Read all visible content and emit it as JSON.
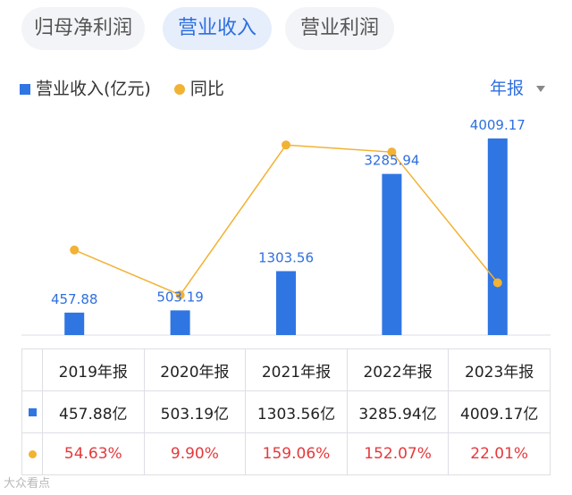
{
  "tabs": [
    {
      "label": "归母净利润",
      "active": false
    },
    {
      "label": "营业收入",
      "active": true
    },
    {
      "label": "营业利润",
      "active": false
    }
  ],
  "legend": {
    "bar_label": "营业收入(亿元)",
    "line_label": "同比"
  },
  "period_selector": {
    "value": "年报"
  },
  "colors": {
    "bar": "#2f76e3",
    "line": "#f2b233",
    "accent": "#2e6fe0",
    "negative_text": "#e4393c"
  },
  "chart_data": {
    "type": "bar",
    "categories": [
      "2019年报",
      "2020年报",
      "2021年报",
      "2022年报",
      "2023年报"
    ],
    "series": [
      {
        "name": "营业收入(亿元)",
        "type": "bar",
        "values": [
          457.88,
          503.19,
          1303.56,
          3285.94,
          4009.17
        ],
        "labels": [
          "457.88",
          "503.19",
          "1303.56",
          "3285.94",
          "4009.17"
        ]
      },
      {
        "name": "同比",
        "type": "line",
        "values": [
          54.63,
          9.9,
          159.06,
          152.07,
          22.01
        ]
      }
    ]
  },
  "table": {
    "headers": [
      "2019年报",
      "2020年报",
      "2021年报",
      "2022年报",
      "2023年报"
    ],
    "revenue_row": [
      "457.88亿",
      "503.19亿",
      "1303.56亿",
      "3285.94亿",
      "4009.17亿"
    ],
    "yoy_row": [
      "54.63%",
      "9.90%",
      "159.06%",
      "152.07%",
      "22.01%"
    ]
  },
  "watermark": "大众看点"
}
